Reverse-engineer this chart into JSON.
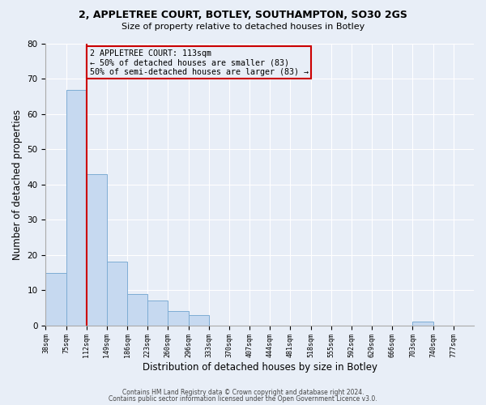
{
  "title1": "2, APPLETREE COURT, BOTLEY, SOUTHAMPTON, SO30 2GS",
  "title2": "Size of property relative to detached houses in Botley",
  "xlabel": "Distribution of detached houses by size in Botley",
  "ylabel": "Number of detached properties",
  "bar_values": [
    15,
    67,
    43,
    18,
    9,
    7,
    4,
    3,
    0,
    0,
    0,
    0,
    0,
    0,
    0,
    0,
    0,
    0,
    1,
    0,
    0
  ],
  "bin_labels": [
    "38sqm",
    "75sqm",
    "112sqm",
    "149sqm",
    "186sqm",
    "223sqm",
    "260sqm",
    "296sqm",
    "333sqm",
    "370sqm",
    "407sqm",
    "444sqm",
    "481sqm",
    "518sqm",
    "555sqm",
    "592sqm",
    "629sqm",
    "666sqm",
    "703sqm",
    "740sqm",
    "777sqm"
  ],
  "bar_color": "#c6d9f0",
  "bar_edge_color": "#7eadd4",
  "bg_color": "#e8eef7",
  "grid_color": "#ffffff",
  "vline_x": 2,
  "vline_color": "#cc0000",
  "annotation_title": "2 APPLETREE COURT: 113sqm",
  "annotation_line1": "← 50% of detached houses are smaller (83)",
  "annotation_line2": "50% of semi-detached houses are larger (83) →",
  "annotation_box_color": "#cc0000",
  "ylim": [
    0,
    80
  ],
  "yticks": [
    0,
    10,
    20,
    30,
    40,
    50,
    60,
    70,
    80
  ],
  "footer1": "Contains HM Land Registry data © Crown copyright and database right 2024.",
  "footer2": "Contains public sector information licensed under the Open Government Licence v3.0."
}
